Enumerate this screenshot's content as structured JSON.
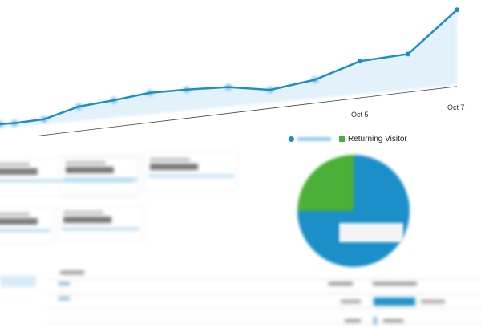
{
  "chart_data": {
    "type": "area",
    "x_tick_labels": [
      "Oct 5",
      "Oct 7"
    ],
    "values": [
      4,
      4,
      6,
      16,
      20,
      25,
      26,
      26,
      21,
      28,
      43,
      47,
      86
    ],
    "colors": {
      "line": "#1a8fc8",
      "fill": "#e3f1fa"
    }
  },
  "pie": {
    "legend": [
      {
        "label": "",
        "color": "#1a8fc8"
      },
      {
        "label": "Returning Visitor",
        "color": "#4caf37"
      }
    ],
    "slices": [
      {
        "legend_index": 0,
        "percent": 75,
        "color": "#1a8fc8"
      },
      {
        "legend_index": 1,
        "percent": 25,
        "color": "#4caf37"
      }
    ]
  },
  "metric_cards_count": 5,
  "table": {
    "sessions_bar_percent": 95
  }
}
